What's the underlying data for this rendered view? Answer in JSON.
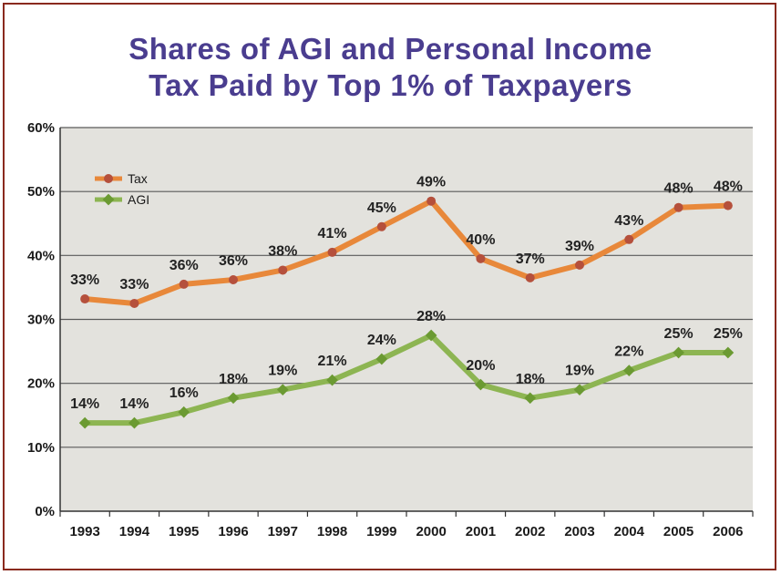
{
  "title_line1": "Shares of AGI and Personal Income",
  "title_line2": "Tax Paid by Top 1% of Taxpayers",
  "chart_data": {
    "type": "line",
    "title": "Shares of AGI and Personal Income Tax Paid by Top 1% of Taxpayers",
    "xlabel": "",
    "ylabel": "",
    "x": [
      "1993",
      "1994",
      "1995",
      "1996",
      "1997",
      "1998",
      "1999",
      "2000",
      "2001",
      "2002",
      "2003",
      "2004",
      "2005",
      "2006"
    ],
    "ylim": [
      0,
      60
    ],
    "yticks": [
      "0%",
      "10%",
      "20%",
      "30%",
      "40%",
      "50%",
      "60%"
    ],
    "grid": true,
    "legend_placement": "top-left",
    "series": [
      {
        "name": "Tax",
        "color": "#e8883a",
        "marker_color": "#b5503c",
        "values": [
          33.2,
          32.5,
          35.5,
          36.2,
          37.7,
          40.5,
          44.5,
          48.5,
          39.5,
          36.5,
          38.5,
          42.5,
          47.5,
          47.8
        ],
        "labels": [
          "33%",
          "33%",
          "36%",
          "36%",
          "38%",
          "41%",
          "45%",
          "49%",
          "40%",
          "37%",
          "39%",
          "43%",
          "48%",
          "48%"
        ]
      },
      {
        "name": "AGI",
        "color": "#8db552",
        "marker_color": "#6b9a32",
        "values": [
          13.8,
          13.8,
          15.5,
          17.7,
          19.0,
          20.5,
          23.8,
          27.5,
          19.8,
          17.7,
          19.0,
          22.0,
          24.8,
          24.8
        ],
        "labels": [
          "14%",
          "14%",
          "16%",
          "18%",
          "19%",
          "21%",
          "24%",
          "28%",
          "20%",
          "18%",
          "19%",
          "22%",
          "25%",
          "25%"
        ]
      }
    ]
  }
}
